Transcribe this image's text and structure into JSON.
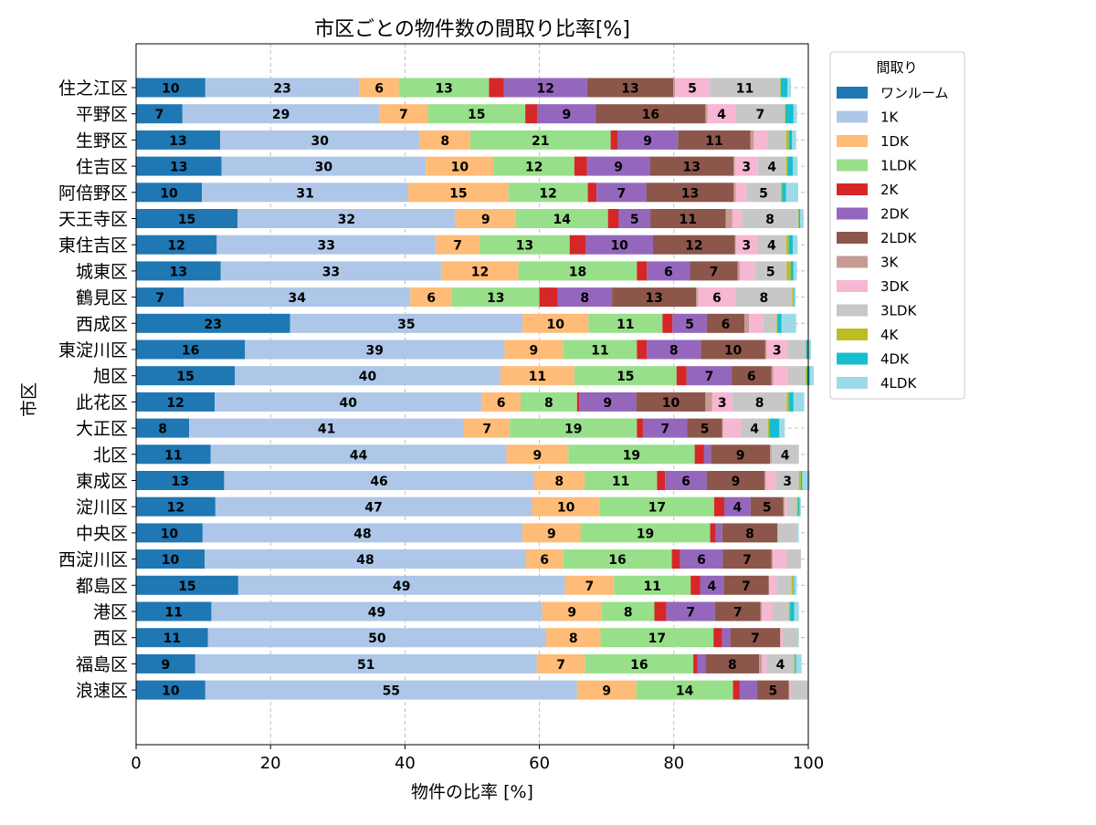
{
  "chart_data": {
    "type": "bar",
    "orientation": "horizontal",
    "stacked": true,
    "title": "市区ごとの物件数の間取り比率[%]",
    "xlabel": "物件の比率 [%]",
    "ylabel": "市区",
    "xlim": [
      0,
      100
    ],
    "xticks": [
      "0",
      "20",
      "40",
      "60",
      "80",
      "100"
    ],
    "grid": true,
    "legend_title": "間取り",
    "legend_position": "outside-right-top",
    "categories": [
      "住之江区",
      "平野区",
      "生野区",
      "住吉区",
      "阿倍野区",
      "天王寺区",
      "東住吉区",
      "城東区",
      "鶴見区",
      "西成区",
      "東淀川区",
      "旭区",
      "此花区",
      "大正区",
      "北区",
      "東成区",
      "淀川区",
      "中央区",
      "西淀川区",
      "都島区",
      "港区",
      "西区",
      "福島区",
      "浪速区"
    ],
    "series": [
      {
        "name": "ワンルーム",
        "color": "#1f77b4",
        "values": [
          10.3,
          6.9,
          12.5,
          12.7,
          9.8,
          15.1,
          12.0,
          12.6,
          7.1,
          22.9,
          16.2,
          14.7,
          11.7,
          7.9,
          11.1,
          13.1,
          11.8,
          9.9,
          10.2,
          15.2,
          11.2,
          10.7,
          8.8,
          10.3
        ]
      },
      {
        "name": "1K",
        "color": "#aec7e8",
        "values": [
          22.9,
          29.3,
          29.7,
          30.4,
          30.7,
          32.4,
          32.6,
          32.8,
          33.7,
          34.6,
          38.6,
          39.5,
          39.7,
          40.9,
          44.0,
          46.1,
          47.1,
          47.6,
          47.8,
          48.6,
          49.2,
          50.3,
          50.8,
          55.3
        ]
      },
      {
        "name": "1DK",
        "color": "#ffbb78",
        "values": [
          5.9,
          7.2,
          7.5,
          10.1,
          14.9,
          9.0,
          6.5,
          11.5,
          6.2,
          9.8,
          8.7,
          11.0,
          5.8,
          6.8,
          9.2,
          7.5,
          10.1,
          8.6,
          5.5,
          7.3,
          8.9,
          8.1,
          7.2,
          8.8
        ]
      },
      {
        "name": "1LDK",
        "color": "#98df8a",
        "values": [
          13.4,
          14.5,
          20.9,
          12.0,
          11.8,
          13.7,
          13.4,
          17.6,
          13.0,
          11.0,
          11.0,
          15.2,
          8.4,
          18.9,
          18.8,
          10.8,
          17.0,
          19.3,
          16.2,
          11.4,
          7.8,
          16.8,
          16.1,
          14.4
        ]
      },
      {
        "name": "2K",
        "color": "#d62728",
        "values": [
          2.2,
          1.8,
          1.0,
          1.9,
          1.3,
          1.6,
          2.4,
          1.5,
          2.7,
          1.5,
          1.5,
          1.5,
          0.3,
          0.9,
          1.4,
          1.2,
          1.5,
          0.8,
          1.2,
          1.4,
          1.8,
          1.3,
          0.6,
          1.0
        ]
      },
      {
        "name": "2DK",
        "color": "#9467bd",
        "values": [
          12.4,
          8.7,
          9.0,
          9.3,
          7.4,
          4.7,
          10.0,
          6.4,
          8.1,
          5.1,
          8.0,
          6.7,
          8.5,
          6.6,
          1.0,
          6.2,
          3.9,
          1.0,
          6.4,
          3.5,
          7.2,
          1.2,
          1.2,
          2.6
        ]
      },
      {
        "name": "2LDK",
        "color": "#8c564b",
        "values": [
          12.8,
          16.3,
          10.8,
          12.5,
          13.0,
          11.2,
          12.2,
          7.1,
          12.5,
          5.6,
          9.6,
          5.9,
          10.3,
          5.2,
          8.8,
          8.6,
          4.9,
          8.2,
          7.2,
          6.7,
          6.8,
          7.4,
          8.0,
          4.7
        ]
      },
      {
        "name": "3K",
        "color": "#c49c94",
        "values": [
          0.3,
          0.3,
          0.5,
          0.2,
          0.3,
          1.0,
          0.1,
          0.3,
          0.3,
          0.7,
          0.2,
          0.3,
          1.0,
          0.1,
          0.2,
          0.2,
          0.2,
          0.1,
          0.2,
          0.1,
          0.2,
          0.1,
          0.4,
          0.1
        ]
      },
      {
        "name": "3DK",
        "color": "#f7b6d2",
        "values": [
          5.1,
          4.2,
          2.0,
          3.4,
          1.6,
          1.4,
          3.2,
          2.2,
          5.6,
          2.1,
          3.1,
          2.2,
          3.0,
          2.7,
          0.0,
          1.5,
          0.3,
          0.0,
          2.1,
          1.1,
          1.6,
          0.3,
          0.7,
          0.2
        ]
      },
      {
        "name": "3LDK",
        "color": "#c7c7c7",
        "values": [
          10.5,
          7.3,
          2.8,
          4.2,
          5.1,
          8.4,
          4.3,
          4.8,
          8.4,
          2.0,
          2.7,
          2.6,
          8.1,
          4.0,
          4.1,
          3.4,
          1.5,
          2.9,
          2.1,
          2.2,
          2.4,
          2.3,
          4.1,
          2.5
        ]
      },
      {
        "name": "4K",
        "color": "#bcbd22",
        "values": [
          0.1,
          0.1,
          0.4,
          0.2,
          0.2,
          0.1,
          0.4,
          0.6,
          0.2,
          0.1,
          0.1,
          0.2,
          0.3,
          0.2,
          0.0,
          0.3,
          0.2,
          0.0,
          0.0,
          0.3,
          0.2,
          0.0,
          0.1,
          0.0
        ]
      },
      {
        "name": "4DK",
        "color": "#17becf",
        "values": [
          1.0,
          1.2,
          0.5,
          0.8,
          0.6,
          0.2,
          0.6,
          0.4,
          0.1,
          0.6,
          0.4,
          0.4,
          0.7,
          1.5,
          0.0,
          0.2,
          0.2,
          0.0,
          0.0,
          0.1,
          0.6,
          0.0,
          0.2,
          0.0
        ]
      },
      {
        "name": "4LDK",
        "color": "#9edae5",
        "values": [
          0.5,
          0.5,
          0.6,
          0.7,
          1.8,
          0.5,
          0.7,
          0.5,
          0.2,
          2.2,
          0.3,
          0.6,
          1.6,
          0.8,
          0.0,
          1.1,
          0.2,
          0.2,
          0.0,
          0.4,
          0.7,
          0.1,
          0.8,
          0.1
        ]
      }
    ]
  }
}
